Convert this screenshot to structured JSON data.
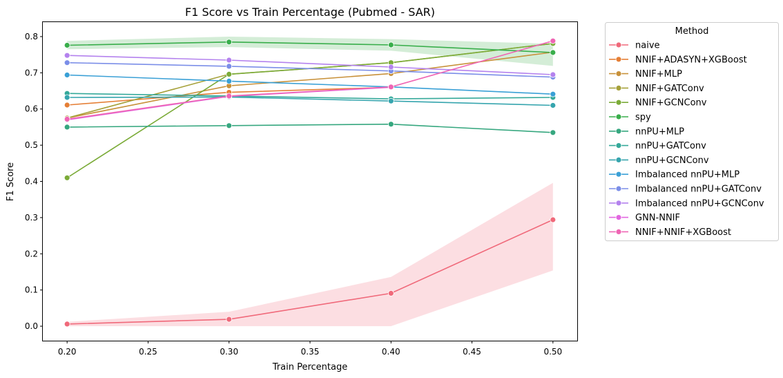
{
  "chart_data": {
    "type": "line",
    "title": "F1 Score vs Train Percentage (Pubmed - SAR)",
    "xlabel": "Train Percentage",
    "ylabel": "F1 Score",
    "xlim": [
      0.185,
      0.515
    ],
    "ylim": [
      -0.04,
      0.84
    ],
    "xticks": [
      "0.20",
      "0.25",
      "0.30",
      "0.35",
      "0.40",
      "0.45",
      "0.50"
    ],
    "yticks": [
      "0.0",
      "0.1",
      "0.2",
      "0.3",
      "0.4",
      "0.5",
      "0.6",
      "0.7",
      "0.8"
    ],
    "grid": false,
    "legend_title": "Method",
    "legend_position": "outside-right",
    "x": [
      0.2,
      0.3,
      0.4,
      0.5
    ],
    "series": [
      {
        "name": "naive",
        "color": "#f0697a",
        "values": [
          0.006,
          0.019,
          0.091,
          0.294
        ],
        "band_lower": [
          0.0,
          0.0,
          0.0,
          0.154
        ],
        "band_upper": [
          0.012,
          0.04,
          0.136,
          0.396
        ]
      },
      {
        "name": "NNIF+ADASYN+XGBoost",
        "color": "#e57f36",
        "values": [
          0.611,
          0.646,
          0.66,
          null
        ]
      },
      {
        "name": "NNIF+MLP",
        "color": "#c8913a",
        "values": [
          0.575,
          0.664,
          0.698,
          0.757
        ]
      },
      {
        "name": "NNIF+GATConv",
        "color": "#a6a13a",
        "values": [
          0.575,
          0.696,
          0.728,
          0.781
        ]
      },
      {
        "name": "NNIF+GCNConv",
        "color": "#7bab38",
        "values": [
          0.41,
          0.696,
          0.728,
          0.781
        ]
      },
      {
        "name": "spy",
        "color": "#39ae4b",
        "values": [
          0.776,
          0.785,
          0.777,
          0.756
        ],
        "band_lower": [
          0.765,
          0.771,
          0.761,
          0.719
        ],
        "band_upper": [
          0.788,
          0.8,
          0.793,
          0.78
        ]
      },
      {
        "name": "nnPU+MLP",
        "color": "#36a77f",
        "values": [
          0.55,
          0.554,
          0.558,
          0.535
        ]
      },
      {
        "name": "nnPU+GATConv",
        "color": "#35a99a",
        "values": [
          0.643,
          0.636,
          0.628,
          0.632
        ]
      },
      {
        "name": "nnPU+GCNConv",
        "color": "#36a5ae",
        "values": [
          0.632,
          0.633,
          0.622,
          0.61
        ]
      },
      {
        "name": "Imbalanced nnPU+MLP",
        "color": "#3aa0d6",
        "values": [
          0.694,
          0.677,
          0.661,
          0.641
        ]
      },
      {
        "name": "Imbalanced nnPU+GATConv",
        "color": "#7b8ee8",
        "values": [
          0.728,
          0.718,
          0.705,
          0.688
        ]
      },
      {
        "name": "Imbalanced nnPU+GCNConv",
        "color": "#b482ee",
        "values": [
          0.748,
          0.735,
          0.716,
          0.695
        ]
      },
      {
        "name": "GNN-NNIF",
        "color": "#e266e0",
        "values": [
          0.57,
          0.635,
          0.66,
          null
        ]
      },
      {
        "name": "NNIF+NNIF+XGBoost",
        "color": "#ef65b4",
        "values": [
          0.572,
          0.636,
          0.661,
          0.788
        ]
      }
    ]
  }
}
